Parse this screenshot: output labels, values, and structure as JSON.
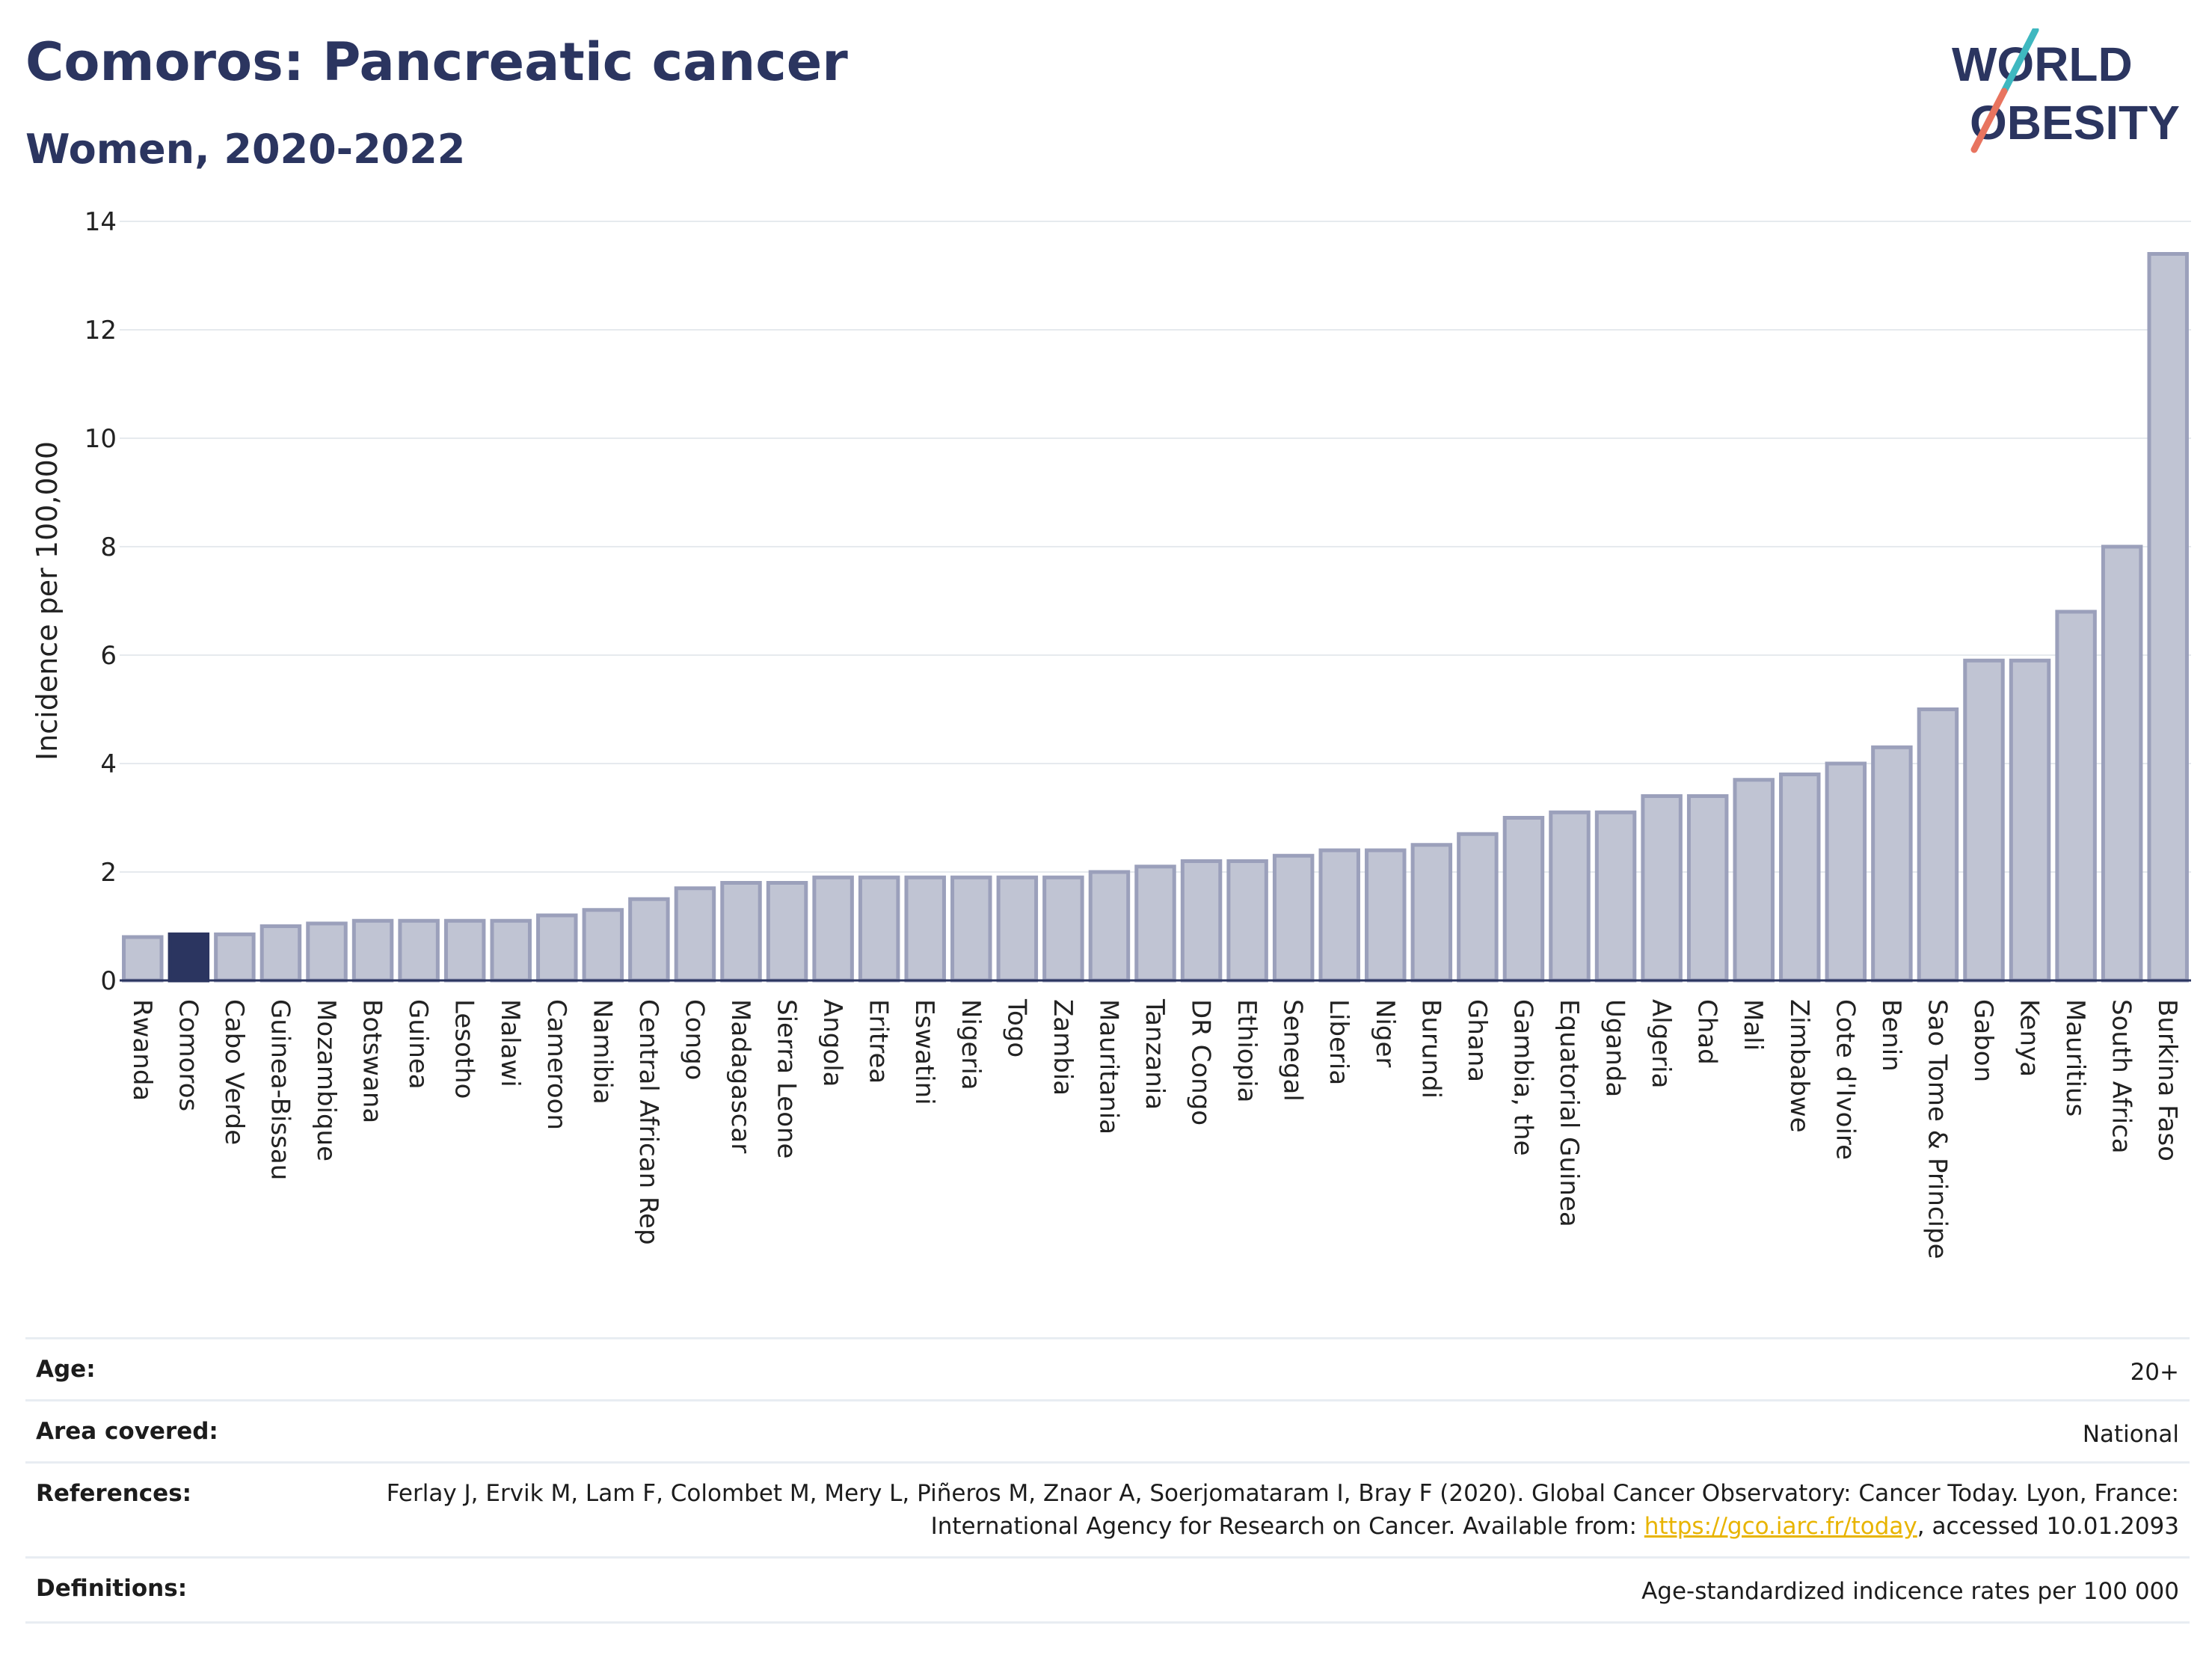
{
  "header": {
    "title": "Comoros: Pancreatic cancer",
    "subtitle": "Women, 2020-2022",
    "logo_line1": "WORLD",
    "logo_line2": "OBESITY"
  },
  "colors": {
    "title": "#2b3560",
    "bar": "#c0c4d3",
    "bar_stroke": "#9ba0bb",
    "highlight": "#2b3560",
    "grid": "#e6eaee",
    "link": "#e8b400",
    "logo_teal": "#3fb8c0",
    "logo_coral": "#e8745f"
  },
  "chart_data": {
    "type": "bar",
    "ylabel": "Incidence per 100,000",
    "ylim": [
      0,
      14
    ],
    "yticks": [
      0,
      2,
      4,
      6,
      8,
      10,
      12,
      14
    ],
    "grid": true,
    "highlight": "Comoros",
    "categories": [
      "Rwanda",
      "Comoros",
      "Cabo Verde",
      "Guinea-Bissau",
      "Mozambique",
      "Botswana",
      "Guinea",
      "Lesotho",
      "Malawi",
      "Cameroon",
      "Namibia",
      "Central African Rep",
      "Congo",
      "Madagascar",
      "Sierra Leone",
      "Angola",
      "Eritrea",
      "Eswatini",
      "Nigeria",
      "Togo",
      "Zambia",
      "Mauritania",
      "Tanzania",
      "DR Congo",
      "Ethiopia",
      "Senegal",
      "Liberia",
      "Niger",
      "Burundi",
      "Ghana",
      "Gambia, the",
      "Equatorial Guinea",
      "Uganda",
      "Algeria",
      "Chad",
      "Mali",
      "Zimbabwe",
      "Cote d'Ivoire",
      "Benin",
      "Sao Tome & Principe",
      "Gabon",
      "Kenya",
      "Mauritius",
      "South Africa",
      "Burkina Faso"
    ],
    "values": [
      0.8,
      0.85,
      0.85,
      1.0,
      1.05,
      1.1,
      1.1,
      1.1,
      1.1,
      1.2,
      1.3,
      1.5,
      1.7,
      1.8,
      1.8,
      1.9,
      1.9,
      1.9,
      1.9,
      1.9,
      1.9,
      2.0,
      2.1,
      2.2,
      2.2,
      2.3,
      2.4,
      2.4,
      2.5,
      2.7,
      3.0,
      3.1,
      3.1,
      3.4,
      3.4,
      3.7,
      3.8,
      4.0,
      4.3,
      5.0,
      5.9,
      5.9,
      6.8,
      8.0,
      13.4
    ]
  },
  "meta": {
    "age_label": "Age:",
    "age_value": "20+",
    "area_label": "Area covered:",
    "area_value": "National",
    "ref_label": "References:",
    "ref_text_1": "Ferlay J, Ervik M, Lam F, Colombet M, Mery L, Piñeros M, Znaor A, Soerjomataram I, Bray F (2020). Global Cancer Observatory: Cancer Today. Lyon, France: International Agency for Research on Cancer. Available from: ",
    "ref_link": "https://gco.iarc.fr/today",
    "ref_text_2": ", accessed 10.01.2093",
    "def_label": "Definitions:",
    "def_value": "Age-standardized indicence rates per 100 000"
  }
}
